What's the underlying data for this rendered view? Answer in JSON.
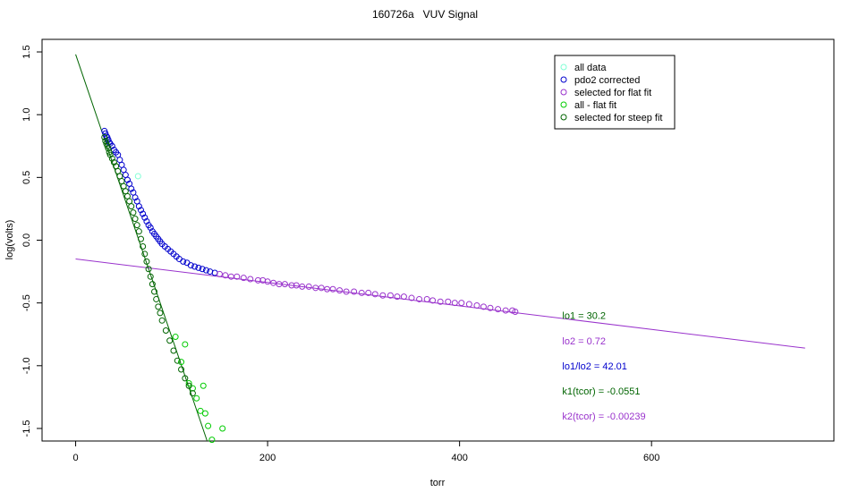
{
  "chart_data": {
    "type": "scatter",
    "title": "160726a   VUV Signal",
    "xlabel": "torr",
    "ylabel": "log(volts)",
    "xlim": [
      -35,
      790
    ],
    "ylim": [
      -1.6,
      1.6
    ],
    "x_ticks": [
      0,
      200,
      400,
      600
    ],
    "y_ticks": [
      -1.5,
      -1.0,
      -0.5,
      0.0,
      0.5,
      1.0,
      1.5
    ],
    "x_tick_labels": [
      "0",
      "200",
      "400",
      "600"
    ],
    "y_tick_labels": [
      "-1.5",
      "-1.0",
      "-0.5",
      "0.0",
      "0.5",
      "1.0",
      "1.5"
    ],
    "grid": false,
    "legend_position": "top-right",
    "legend": [
      {
        "label": "all data",
        "color": "#7FFFD4"
      },
      {
        "label": "pdo2 corrected",
        "color": "#0000CD"
      },
      {
        "label": "selected for flat fit",
        "color": "#9932CC"
      },
      {
        "label": "all - flat fit",
        "color": "#00CC00"
      },
      {
        "label": "selected for steep fit",
        "color": "#006400"
      }
    ],
    "series": [
      {
        "name": "all data",
        "color": "#7FFFD4",
        "points": [
          [
            65,
            0.51
          ]
        ]
      },
      {
        "name": "pdo2 corrected",
        "color": "#0000CD",
        "points": [
          [
            30,
            0.87
          ],
          [
            31,
            0.85
          ],
          [
            32,
            0.83
          ],
          [
            33,
            0.82
          ],
          [
            34,
            0.8
          ],
          [
            35,
            0.78
          ],
          [
            36,
            0.77
          ],
          [
            38,
            0.75
          ],
          [
            40,
            0.72
          ],
          [
            42,
            0.7
          ],
          [
            44,
            0.68
          ],
          [
            46,
            0.64
          ],
          [
            48,
            0.6
          ],
          [
            50,
            0.56
          ],
          [
            52,
            0.52
          ],
          [
            54,
            0.48
          ],
          [
            56,
            0.45
          ],
          [
            58,
            0.41
          ],
          [
            60,
            0.38
          ],
          [
            62,
            0.34
          ],
          [
            64,
            0.31
          ],
          [
            66,
            0.27
          ],
          [
            68,
            0.24
          ],
          [
            70,
            0.21
          ],
          [
            72,
            0.18
          ],
          [
            74,
            0.15
          ],
          [
            76,
            0.12
          ],
          [
            78,
            0.1
          ],
          [
            80,
            0.07
          ],
          [
            82,
            0.05
          ],
          [
            84,
            0.03
          ],
          [
            86,
            0.01
          ],
          [
            88,
            -0.01
          ],
          [
            90,
            -0.03
          ],
          [
            93,
            -0.05
          ],
          [
            96,
            -0.07
          ],
          [
            99,
            -0.09
          ],
          [
            102,
            -0.11
          ],
          [
            105,
            -0.13
          ],
          [
            108,
            -0.15
          ],
          [
            112,
            -0.17
          ],
          [
            116,
            -0.18
          ],
          [
            120,
            -0.2
          ],
          [
            124,
            -0.21
          ],
          [
            128,
            -0.22
          ],
          [
            132,
            -0.23
          ],
          [
            136,
            -0.24
          ],
          [
            140,
            -0.25
          ],
          [
            145,
            -0.26
          ]
        ]
      },
      {
        "name": "selected for flat fit",
        "color": "#9932CC",
        "points": [
          [
            150,
            -0.27
          ],
          [
            156,
            -0.28
          ],
          [
            162,
            -0.29
          ],
          [
            168,
            -0.29
          ],
          [
            175,
            -0.3
          ],
          [
            182,
            -0.31
          ],
          [
            190,
            -0.32
          ],
          [
            195,
            -0.32
          ],
          [
            200,
            -0.33
          ],
          [
            206,
            -0.34
          ],
          [
            212,
            -0.35
          ],
          [
            218,
            -0.35
          ],
          [
            225,
            -0.36
          ],
          [
            230,
            -0.36
          ],
          [
            236,
            -0.37
          ],
          [
            243,
            -0.37
          ],
          [
            250,
            -0.38
          ],
          [
            256,
            -0.38
          ],
          [
            262,
            -0.39
          ],
          [
            268,
            -0.39
          ],
          [
            275,
            -0.4
          ],
          [
            282,
            -0.41
          ],
          [
            290,
            -0.41
          ],
          [
            298,
            -0.42
          ],
          [
            305,
            -0.42
          ],
          [
            312,
            -0.43
          ],
          [
            320,
            -0.44
          ],
          [
            328,
            -0.44
          ],
          [
            335,
            -0.45
          ],
          [
            342,
            -0.45
          ],
          [
            350,
            -0.46
          ],
          [
            358,
            -0.47
          ],
          [
            366,
            -0.47
          ],
          [
            372,
            -0.48
          ],
          [
            380,
            -0.49
          ],
          [
            388,
            -0.49
          ],
          [
            395,
            -0.5
          ],
          [
            402,
            -0.5
          ],
          [
            410,
            -0.51
          ],
          [
            418,
            -0.52
          ],
          [
            425,
            -0.53
          ],
          [
            432,
            -0.54
          ],
          [
            440,
            -0.55
          ],
          [
            448,
            -0.56
          ],
          [
            455,
            -0.56
          ],
          [
            458,
            -0.57
          ]
        ]
      },
      {
        "name": "all - flat fit",
        "color": "#00CC00",
        "points": [
          [
            104,
            -0.77
          ],
          [
            110,
            -0.97
          ],
          [
            114,
            -0.83
          ],
          [
            118,
            -1.14
          ],
          [
            122,
            -1.18
          ],
          [
            126,
            -1.26
          ],
          [
            130,
            -1.36
          ],
          [
            133,
            -1.16
          ],
          [
            135,
            -1.38
          ],
          [
            138,
            -1.48
          ],
          [
            142,
            -1.59
          ],
          [
            153,
            -1.5
          ]
        ]
      },
      {
        "name": "selected for steep fit",
        "color": "#006400",
        "points": [
          [
            30,
            0.82
          ],
          [
            31,
            0.79
          ],
          [
            32,
            0.77
          ],
          [
            33,
            0.75
          ],
          [
            34,
            0.73
          ],
          [
            35,
            0.7
          ],
          [
            36,
            0.68
          ],
          [
            38,
            0.65
          ],
          [
            40,
            0.62
          ],
          [
            42,
            0.59
          ],
          [
            44,
            0.55
          ],
          [
            46,
            0.51
          ],
          [
            48,
            0.47
          ],
          [
            50,
            0.43
          ],
          [
            52,
            0.39
          ],
          [
            54,
            0.35
          ],
          [
            56,
            0.31
          ],
          [
            58,
            0.27
          ],
          [
            60,
            0.22
          ],
          [
            62,
            0.17
          ],
          [
            64,
            0.12
          ],
          [
            66,
            0.07
          ],
          [
            68,
            0.01
          ],
          [
            70,
            -0.05
          ],
          [
            72,
            -0.11
          ],
          [
            74,
            -0.17
          ],
          [
            76,
            -0.23
          ],
          [
            78,
            -0.29
          ],
          [
            80,
            -0.35
          ],
          [
            82,
            -0.41
          ],
          [
            84,
            -0.47
          ],
          [
            86,
            -0.53
          ],
          [
            88,
            -0.58
          ],
          [
            90,
            -0.64
          ],
          [
            94,
            -0.72
          ],
          [
            98,
            -0.8
          ],
          [
            102,
            -0.88
          ],
          [
            106,
            -0.96
          ],
          [
            110,
            -1.03
          ],
          [
            114,
            -1.1
          ],
          [
            118,
            -1.16
          ],
          [
            122,
            -1.22
          ]
        ]
      }
    ],
    "fit_lines": [
      {
        "name": "flat fit",
        "color": "#9932CC",
        "x": [
          0,
          760
        ],
        "y": [
          -0.15,
          -0.86
        ]
      },
      {
        "name": "steep fit",
        "color": "#006400",
        "x": [
          0,
          137
        ],
        "y": [
          1.48,
          -1.6
        ]
      }
    ],
    "annotations": [
      {
        "text": "lo1 = 30.2",
        "color": "#006400",
        "x": 507,
        "y": -0.6
      },
      {
        "text": "lo2 = 0.72",
        "color": "#9932CC",
        "x": 507,
        "y": -0.8
      },
      {
        "text": "lo1/lo2 = 42.01",
        "color": "#0000CD",
        "x": 507,
        "y": -1.0
      },
      {
        "text": "k1(tcor) = -0.0551",
        "color": "#006400",
        "x": 507,
        "y": -1.2
      },
      {
        "text": "k2(tcor) = -0.00239",
        "color": "#9932CC",
        "x": 507,
        "y": -1.4
      }
    ]
  }
}
